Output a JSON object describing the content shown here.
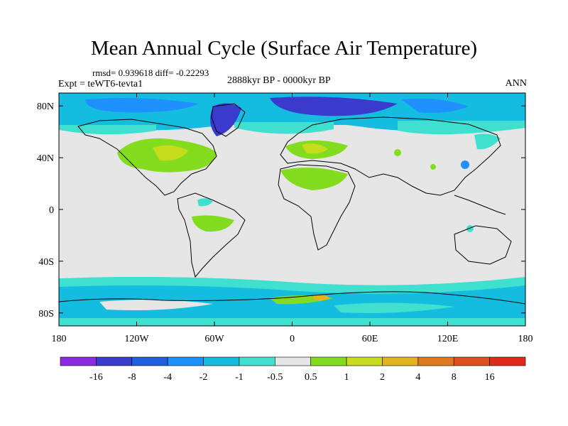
{
  "chart_data": {
    "type": "map",
    "title": "Mean Annual Cycle (Surface Air Temperature)",
    "stats": "rmsd= 0.939618 diff= -0.22293",
    "experiment": "Expt = teWT6-tevta1",
    "period": "2888kyr BP - 0000kyr BP",
    "season": "ANN",
    "xaxis": {
      "range": [
        -180,
        180
      ],
      "ticks": [
        -180,
        -120,
        -60,
        0,
        60,
        120,
        180
      ],
      "tick_labels": [
        "180",
        "120W",
        "60W",
        "0",
        "60E",
        "120E",
        "180"
      ]
    },
    "yaxis": {
      "range": [
        -90,
        90
      ],
      "ticks": [
        80,
        40,
        0,
        -40,
        -80
      ],
      "tick_labels": [
        "80N",
        "40N",
        "0",
        "40S",
        "80S"
      ]
    },
    "colorbar": {
      "levels": [
        "-16",
        "-8",
        "-4",
        "-2",
        "-1",
        "-0.5",
        "0.5",
        "1",
        "2",
        "4",
        "8",
        "16"
      ],
      "colors": [
        "#8a2be2",
        "#3a3acd",
        "#1f5fe0",
        "#1e90ff",
        "#14bce0",
        "#3fe0d0",
        "#e6e6e6",
        "#84dc1e",
        "#c8dc1e",
        "#e0b41e",
        "#e0781e",
        "#e0501e",
        "#e02a1e"
      ]
    }
  }
}
